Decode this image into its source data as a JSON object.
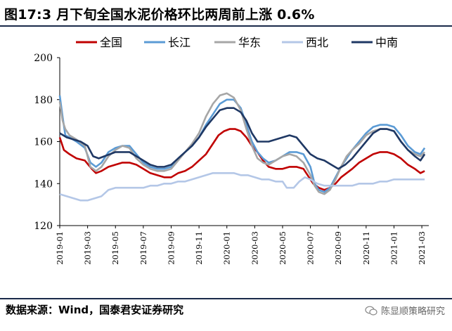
{
  "page": {
    "title": "图17:3 月下旬全国水泥价格环比两周前上涨 0.6%",
    "source": "数据来源：Wind，国泰君安证券研究",
    "watermark": "陈显顺策略研究"
  },
  "chart_data": {
    "type": "line",
    "title": "图17:3 月下旬全国水泥价格环比两周前上涨 0.6%",
    "xlabel": "",
    "ylabel": "",
    "ylim": [
      120,
      200
    ],
    "yticks": [
      120,
      140,
      160,
      180,
      200
    ],
    "x_range": [
      0,
      26.5
    ],
    "x_tick_labels": [
      "2019-01",
      "2019-03",
      "2019-05",
      "2019-07",
      "2019-09",
      "2019-11",
      "2020-01",
      "2020-03",
      "2020-05",
      "2020-07",
      "2020-09",
      "2020-11",
      "2021-01",
      "2021-03"
    ],
    "x_tick_positions": [
      0,
      2,
      4,
      6,
      8,
      10,
      12,
      14,
      16,
      18,
      20,
      22,
      24,
      26
    ],
    "legend_position": "top",
    "series": [
      {
        "name": "全国",
        "color": "#c00000",
        "points": [
          [
            0,
            162
          ],
          [
            0.3,
            156
          ],
          [
            0.7,
            154
          ],
          [
            1.2,
            152
          ],
          [
            1.8,
            151
          ],
          [
            2.3,
            147
          ],
          [
            2.6,
            145
          ],
          [
            3.0,
            146
          ],
          [
            3.5,
            148
          ],
          [
            4.0,
            149
          ],
          [
            4.5,
            150
          ],
          [
            5.0,
            150
          ],
          [
            5.5,
            149
          ],
          [
            6.0,
            147
          ],
          [
            6.5,
            145
          ],
          [
            7.0,
            144
          ],
          [
            7.5,
            143
          ],
          [
            8.0,
            143
          ],
          [
            8.5,
            145
          ],
          [
            9.0,
            146
          ],
          [
            9.5,
            148
          ],
          [
            10.0,
            151
          ],
          [
            10.5,
            154
          ],
          [
            11.0,
            159
          ],
          [
            11.4,
            163
          ],
          [
            11.8,
            165
          ],
          [
            12.2,
            166
          ],
          [
            12.6,
            166
          ],
          [
            13.0,
            165
          ],
          [
            13.4,
            162
          ],
          [
            13.8,
            158
          ],
          [
            14.2,
            155
          ],
          [
            14.6,
            151
          ],
          [
            15.0,
            148
          ],
          [
            15.5,
            147
          ],
          [
            16.0,
            147
          ],
          [
            16.5,
            148
          ],
          [
            17.0,
            148
          ],
          [
            17.5,
            147
          ],
          [
            17.9,
            143
          ],
          [
            18.2,
            140
          ],
          [
            18.6,
            138
          ],
          [
            19.0,
            137
          ],
          [
            19.4,
            138
          ],
          [
            19.8,
            140
          ],
          [
            20.2,
            143
          ],
          [
            20.6,
            145
          ],
          [
            21.0,
            147
          ],
          [
            21.5,
            150
          ],
          [
            22.0,
            152
          ],
          [
            22.5,
            154
          ],
          [
            23.0,
            155
          ],
          [
            23.5,
            155
          ],
          [
            24.0,
            154
          ],
          [
            24.5,
            152
          ],
          [
            25.0,
            149
          ],
          [
            25.5,
            147
          ],
          [
            25.9,
            145
          ],
          [
            26.2,
            146
          ]
        ]
      },
      {
        "name": "长江",
        "color": "#5b9bd5",
        "points": [
          [
            0,
            182
          ],
          [
            0.2,
            172
          ],
          [
            0.4,
            163
          ],
          [
            0.7,
            162
          ],
          [
            1.2,
            160
          ],
          [
            1.8,
            157
          ],
          [
            2.2,
            150
          ],
          [
            2.6,
            148
          ],
          [
            3.0,
            150
          ],
          [
            3.5,
            155
          ],
          [
            4.0,
            157
          ],
          [
            4.5,
            158
          ],
          [
            5.0,
            158
          ],
          [
            5.5,
            154
          ],
          [
            6.0,
            150
          ],
          [
            6.5,
            148
          ],
          [
            7.0,
            147
          ],
          [
            7.5,
            147
          ],
          [
            8.0,
            148
          ],
          [
            8.5,
            152
          ],
          [
            9.0,
            155
          ],
          [
            9.5,
            158
          ],
          [
            10.0,
            162
          ],
          [
            10.5,
            168
          ],
          [
            11.0,
            173
          ],
          [
            11.5,
            178
          ],
          [
            12.0,
            180
          ],
          [
            12.5,
            180
          ],
          [
            13.0,
            176
          ],
          [
            13.4,
            168
          ],
          [
            13.8,
            160
          ],
          [
            14.2,
            155
          ],
          [
            14.6,
            152
          ],
          [
            15.0,
            150
          ],
          [
            15.5,
            151
          ],
          [
            16.0,
            153
          ],
          [
            16.5,
            155
          ],
          [
            17.0,
            155
          ],
          [
            17.5,
            154
          ],
          [
            18.0,
            148
          ],
          [
            18.3,
            140
          ],
          [
            18.6,
            137
          ],
          [
            19.0,
            136
          ],
          [
            19.4,
            138
          ],
          [
            19.8,
            143
          ],
          [
            20.2,
            148
          ],
          [
            20.6,
            152
          ],
          [
            21.0,
            156
          ],
          [
            21.5,
            160
          ],
          [
            22.0,
            164
          ],
          [
            22.5,
            167
          ],
          [
            23.0,
            168
          ],
          [
            23.5,
            168
          ],
          [
            24.0,
            167
          ],
          [
            24.5,
            163
          ],
          [
            25.0,
            158
          ],
          [
            25.5,
            155
          ],
          [
            25.9,
            154
          ],
          [
            26.2,
            157
          ]
        ]
      },
      {
        "name": "华东",
        "color": "#a6a6a6",
        "points": [
          [
            0,
            179
          ],
          [
            0.2,
            170
          ],
          [
            0.4,
            166
          ],
          [
            0.7,
            163
          ],
          [
            1.2,
            161
          ],
          [
            1.8,
            158
          ],
          [
            2.2,
            148
          ],
          [
            2.6,
            146
          ],
          [
            3.0,
            148
          ],
          [
            3.5,
            153
          ],
          [
            4.0,
            156
          ],
          [
            4.5,
            158
          ],
          [
            5.0,
            157
          ],
          [
            5.5,
            152
          ],
          [
            6.0,
            149
          ],
          [
            6.5,
            147
          ],
          [
            7.0,
            146
          ],
          [
            7.5,
            146
          ],
          [
            8.0,
            147
          ],
          [
            8.5,
            151
          ],
          [
            9.0,
            155
          ],
          [
            9.5,
            159
          ],
          [
            10.0,
            164
          ],
          [
            10.5,
            172
          ],
          [
            11.0,
            178
          ],
          [
            11.5,
            182
          ],
          [
            12.0,
            183
          ],
          [
            12.5,
            181
          ],
          [
            13.0,
            175
          ],
          [
            13.4,
            166
          ],
          [
            13.8,
            158
          ],
          [
            14.2,
            152
          ],
          [
            14.6,
            150
          ],
          [
            15.0,
            149
          ],
          [
            15.5,
            151
          ],
          [
            16.0,
            153
          ],
          [
            16.5,
            154
          ],
          [
            17.0,
            153
          ],
          [
            17.5,
            150
          ],
          [
            18.0,
            144
          ],
          [
            18.3,
            139
          ],
          [
            18.6,
            136
          ],
          [
            19.0,
            135
          ],
          [
            19.4,
            137
          ],
          [
            19.8,
            142
          ],
          [
            20.2,
            148
          ],
          [
            20.6,
            153
          ],
          [
            21.0,
            156
          ],
          [
            21.5,
            159
          ],
          [
            22.0,
            163
          ],
          [
            22.5,
            165
          ],
          [
            23.0,
            166
          ],
          [
            23.5,
            166
          ],
          [
            24.0,
            165
          ],
          [
            24.5,
            160
          ],
          [
            25.0,
            156
          ],
          [
            25.5,
            154
          ],
          [
            25.9,
            153
          ],
          [
            26.2,
            155
          ]
        ]
      },
      {
        "name": "西北",
        "color": "#b4c7e7",
        "points": [
          [
            0,
            135
          ],
          [
            0.5,
            134
          ],
          [
            1.0,
            133
          ],
          [
            1.5,
            132
          ],
          [
            2.0,
            132
          ],
          [
            2.5,
            133
          ],
          [
            3.0,
            134
          ],
          [
            3.5,
            137
          ],
          [
            4.0,
            138
          ],
          [
            4.5,
            138
          ],
          [
            5.0,
            138
          ],
          [
            5.5,
            138
          ],
          [
            6.0,
            138
          ],
          [
            6.5,
            139
          ],
          [
            7.0,
            139
          ],
          [
            7.5,
            140
          ],
          [
            8.0,
            140
          ],
          [
            8.5,
            141
          ],
          [
            9.0,
            141
          ],
          [
            9.5,
            142
          ],
          [
            10.0,
            143
          ],
          [
            10.5,
            144
          ],
          [
            11.0,
            145
          ],
          [
            11.5,
            145
          ],
          [
            12.0,
            145
          ],
          [
            12.5,
            145
          ],
          [
            13.0,
            144
          ],
          [
            13.5,
            144
          ],
          [
            14.0,
            143
          ],
          [
            14.5,
            142
          ],
          [
            15.0,
            142
          ],
          [
            15.5,
            141
          ],
          [
            16.0,
            141
          ],
          [
            16.3,
            138
          ],
          [
            16.8,
            138
          ],
          [
            17.2,
            141
          ],
          [
            17.6,
            143
          ],
          [
            18.0,
            142
          ],
          [
            18.5,
            140
          ],
          [
            19.0,
            139
          ],
          [
            19.5,
            139
          ],
          [
            20.0,
            139
          ],
          [
            20.5,
            139
          ],
          [
            21.0,
            139
          ],
          [
            21.5,
            140
          ],
          [
            22.0,
            140
          ],
          [
            22.5,
            140
          ],
          [
            23.0,
            141
          ],
          [
            23.5,
            141
          ],
          [
            24.0,
            142
          ],
          [
            24.5,
            142
          ],
          [
            25.0,
            142
          ],
          [
            25.5,
            142
          ],
          [
            26.0,
            142
          ],
          [
            26.2,
            142
          ]
        ]
      },
      {
        "name": "中南",
        "color": "#1f3864",
        "points": [
          [
            0,
            164
          ],
          [
            0.5,
            162
          ],
          [
            1.0,
            161
          ],
          [
            1.5,
            160
          ],
          [
            2.0,
            158
          ],
          [
            2.4,
            153
          ],
          [
            2.8,
            152
          ],
          [
            3.2,
            153
          ],
          [
            3.6,
            154
          ],
          [
            4.0,
            155
          ],
          [
            4.5,
            155
          ],
          [
            5.0,
            155
          ],
          [
            5.5,
            153
          ],
          [
            6.0,
            151
          ],
          [
            6.5,
            149
          ],
          [
            7.0,
            148
          ],
          [
            7.5,
            148
          ],
          [
            8.0,
            149
          ],
          [
            8.5,
            152
          ],
          [
            9.0,
            155
          ],
          [
            9.5,
            158
          ],
          [
            10.0,
            162
          ],
          [
            10.5,
            167
          ],
          [
            11.0,
            171
          ],
          [
            11.5,
            175
          ],
          [
            12.0,
            176
          ],
          [
            12.5,
            176
          ],
          [
            13.0,
            174
          ],
          [
            13.4,
            170
          ],
          [
            13.8,
            164
          ],
          [
            14.2,
            160
          ],
          [
            14.6,
            160
          ],
          [
            15.0,
            160
          ],
          [
            15.5,
            161
          ],
          [
            16.0,
            162
          ],
          [
            16.5,
            163
          ],
          [
            17.0,
            162
          ],
          [
            17.5,
            158
          ],
          [
            18.0,
            154
          ],
          [
            18.5,
            152
          ],
          [
            19.0,
            151
          ],
          [
            19.5,
            149
          ],
          [
            20.0,
            147
          ],
          [
            20.5,
            149
          ],
          [
            21.0,
            152
          ],
          [
            21.5,
            156
          ],
          [
            22.0,
            160
          ],
          [
            22.5,
            164
          ],
          [
            23.0,
            166
          ],
          [
            23.5,
            166
          ],
          [
            24.0,
            165
          ],
          [
            24.5,
            160
          ],
          [
            25.0,
            156
          ],
          [
            25.5,
            153
          ],
          [
            25.9,
            151
          ],
          [
            26.2,
            154
          ]
        ]
      }
    ]
  }
}
